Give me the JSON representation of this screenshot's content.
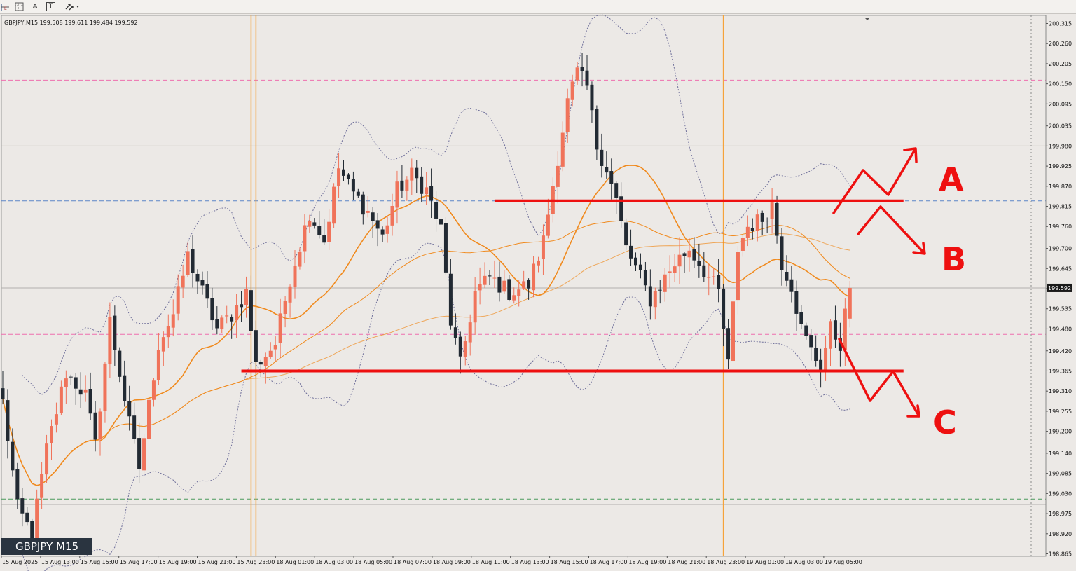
{
  "toolbar": {
    "icons": [
      "period-separator-icon",
      "grid-toggle-icon",
      "text-label-icon",
      "text-box-icon",
      "arrows-dropdown-icon"
    ],
    "text_tool_label": "A",
    "textbox_tool_label": "T"
  },
  "chart_info": {
    "symbol_line": "GBPJPY,M15  199.508 199.611 199.484 199.592",
    "caption": "GBPJPY M15",
    "current_price_label": "199.592"
  },
  "colors": {
    "background": "#ece9e6",
    "bull_candle": "#f0735a",
    "bear_candle": "#222a33",
    "moving_average": "#f08a1e",
    "bollinger": "#6f6f9a",
    "annotation": "#ee1010",
    "session_line": "#f5a33a",
    "pink_level": "#ee6fae",
    "blue_level": "#5b86c7",
    "green_level": "#4a9a5c"
  },
  "annotations": {
    "scenario_a": "A",
    "scenario_b": "B",
    "scenario_c": "C"
  },
  "chart_data": {
    "type": "candlestick",
    "symbol": "GBPJPY",
    "timeframe": "M15",
    "last_bar": {
      "open": 199.508,
      "high": 199.611,
      "low": 199.484,
      "close": 199.592
    },
    "ylim": [
      198.865,
      200.315
    ],
    "y_ticks": [
      "200.315",
      "200.260",
      "200.205",
      "200.150",
      "200.095",
      "200.035",
      "199.980",
      "199.925",
      "199.870",
      "199.815",
      "199.760",
      "199.700",
      "199.645",
      "199.590",
      "199.535",
      "199.480",
      "199.420",
      "199.365",
      "199.310",
      "199.255",
      "199.200",
      "199.140",
      "199.085",
      "199.030",
      "198.975",
      "198.920",
      "198.865"
    ],
    "x_ticks": [
      "15 Aug 2025",
      "15 Aug 13:00",
      "15 Aug 15:00",
      "15 Aug 17:00",
      "15 Aug 19:00",
      "15 Aug 21:00",
      "15 Aug 23:00",
      "18 Aug 01:00",
      "18 Aug 03:00",
      "18 Aug 05:00",
      "18 Aug 07:00",
      "18 Aug 09:00",
      "18 Aug 11:00",
      "18 Aug 13:00",
      "18 Aug 15:00",
      "18 Aug 17:00",
      "18 Aug 19:00",
      "18 Aug 21:00",
      "18 Aug 23:00",
      "19 Aug 01:00",
      "19 Aug 03:00",
      "19 Aug 05:00"
    ],
    "bar_slots": 175,
    "horizontal_levels": [
      {
        "price": 200.16,
        "style": "pink-dashed"
      },
      {
        "price": 199.98,
        "style": "gray-solid"
      },
      {
        "price": 199.83,
        "style": "blue-dashed"
      },
      {
        "price": 199.592,
        "style": "gray-solid"
      },
      {
        "price": 199.465,
        "style": "pink-dashed"
      },
      {
        "price": 199.015,
        "style": "green-dashed"
      },
      {
        "price": 199.0,
        "style": "gray-solid"
      }
    ],
    "resistance": {
      "price": 199.83,
      "from_slot": 101,
      "to_slot": 185
    },
    "support": {
      "price": 199.365,
      "from_slot": 49,
      "to_slot": 185
    },
    "session_lines_slot": [
      51,
      52,
      148
    ],
    "waypoints": [
      [
        0,
        199.28
      ],
      [
        3,
        198.99
      ],
      [
        6,
        198.92
      ],
      [
        9,
        199.15
      ],
      [
        13,
        199.36
      ],
      [
        17,
        199.3
      ],
      [
        19,
        199.16
      ],
      [
        22,
        199.5
      ],
      [
        26,
        199.22
      ],
      [
        28,
        199.1
      ],
      [
        32,
        199.44
      ],
      [
        35,
        199.52
      ],
      [
        38,
        199.68
      ],
      [
        41,
        199.58
      ],
      [
        44,
        199.48
      ],
      [
        47,
        199.52
      ],
      [
        50,
        199.58
      ],
      [
        52,
        199.38
      ],
      [
        56,
        199.44
      ],
      [
        59,
        199.62
      ],
      [
        63,
        199.8
      ],
      [
        66,
        199.72
      ],
      [
        69,
        199.92
      ],
      [
        72,
        199.85
      ],
      [
        75,
        199.8
      ],
      [
        78,
        199.73
      ],
      [
        81,
        199.86
      ],
      [
        84,
        199.9
      ],
      [
        87,
        199.86
      ],
      [
        90,
        199.75
      ],
      [
        92,
        199.5
      ],
      [
        94,
        199.38
      ],
      [
        97,
        199.58
      ],
      [
        100,
        199.62
      ],
      [
        104,
        199.58
      ],
      [
        108,
        199.6
      ],
      [
        111,
        199.72
      ],
      [
        114,
        199.95
      ],
      [
        116,
        200.1
      ],
      [
        118,
        200.18
      ],
      [
        120,
        200.14
      ],
      [
        122,
        199.98
      ],
      [
        124,
        199.92
      ],
      [
        126,
        199.83
      ],
      [
        128,
        199.7
      ],
      [
        131,
        199.62
      ],
      [
        133,
        199.56
      ],
      [
        135,
        199.6
      ],
      [
        138,
        199.66
      ],
      [
        141,
        199.7
      ],
      [
        144,
        199.64
      ],
      [
        147,
        199.58
      ],
      [
        149,
        199.38
      ],
      [
        151,
        199.7
      ],
      [
        153,
        199.76
      ],
      [
        156,
        199.78
      ],
      [
        158,
        199.82
      ],
      [
        160,
        199.66
      ],
      [
        162,
        199.6
      ],
      [
        164,
        199.48
      ],
      [
        166,
        199.42
      ],
      [
        168,
        199.38
      ],
      [
        170,
        199.48
      ],
      [
        172,
        199.44
      ],
      [
        174,
        199.592
      ]
    ]
  }
}
